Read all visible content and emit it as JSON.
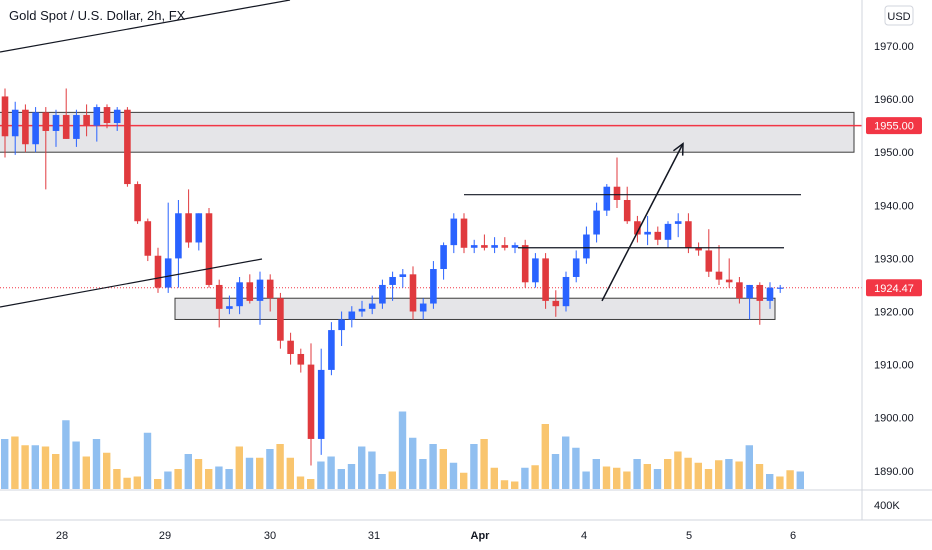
{
  "header": {
    "title": "Gold Spot / U.S. Dollar, 2h, FX"
  },
  "currency_button": "USD",
  "price_tags": {
    "resistance": "1955.00",
    "last": "1924.47"
  },
  "volume_axis_label": "400K",
  "colors": {
    "up": "#2962FF",
    "down": "#E03A3E",
    "vol_up": "#90BFF0",
    "vol_down": "#F9C56E",
    "resistance_line": "#F23645",
    "zone_fill": "#E5E5E8",
    "zone_stroke": "#3b3b3b",
    "drawing": "#131722",
    "last_price": "#F23645"
  },
  "chart_data": {
    "type": "candlestick",
    "title": "Gold Spot / U.S. Dollar, 2h, FX",
    "y_axis": {
      "ticks": [
        "1970.00",
        "1960.00",
        "1950.00",
        "1940.00",
        "1930.00",
        "1920.00",
        "1910.00",
        "1900.00",
        "1890.00"
      ],
      "ylim": [
        1885,
        1977
      ]
    },
    "x_axis": {
      "labels": [
        "28",
        "29",
        "30",
        "31",
        "Apr",
        "4",
        "5",
        "6"
      ],
      "bold": [
        "Apr"
      ]
    },
    "candles_start_offset": -27,
    "candles": [
      [
        1960.5,
        1962.0,
        1949.0,
        1953.0
      ],
      [
        1953.0,
        1959.5,
        1949.5,
        1958.0
      ],
      [
        1958.0,
        1959.0,
        1950.0,
        1951.5
      ],
      [
        1951.5,
        1958.5,
        1950.0,
        1957.5
      ],
      [
        1957.5,
        1958.5,
        1943.0,
        1954.0
      ],
      [
        1954.0,
        1958.0,
        1951.0,
        1957.0
      ],
      [
        1957.0,
        1962.0,
        1952.5,
        1952.5
      ],
      [
        1952.5,
        1958.0,
        1951.0,
        1957.0
      ],
      [
        1957.0,
        1959.0,
        1953.0,
        1955.0
      ],
      [
        1955.0,
        1959.0,
        1952.0,
        1958.5
      ],
      [
        1958.5,
        1959.0,
        1954.5,
        1955.5
      ],
      [
        1955.5,
        1958.5,
        1954.0,
        1958.0
      ],
      [
        1958.0,
        1958.5,
        1943.5,
        1944.0
      ],
      [
        1944.0,
        1944.5,
        1936.5,
        1937.0
      ],
      [
        1937.0,
        1937.5,
        1929.5,
        1930.5
      ],
      [
        1930.5,
        1932.0,
        1923.5,
        1924.5
      ],
      [
        1924.5,
        1940.5,
        1923.5,
        1930.0
      ],
      [
        1930.0,
        1941.0,
        1924.5,
        1938.5
      ],
      [
        1938.5,
        1943.0,
        1932.0,
        1933.0
      ],
      [
        1933.0,
        1938.5,
        1931.5,
        1938.5
      ],
      [
        1938.5,
        1939.5,
        1924.5,
        1925.0
      ],
      [
        1925.0,
        1926.0,
        1917.0,
        1920.5
      ],
      [
        1920.5,
        1923.0,
        1919.5,
        1921.0
      ],
      [
        1921.0,
        1926.5,
        1919.5,
        1925.5
      ],
      [
        1925.5,
        1927.0,
        1921.5,
        1922.0
      ],
      [
        1922.0,
        1927.5,
        1917.5,
        1926.0
      ],
      [
        1926.0,
        1927.0,
        1920.0,
        1922.5
      ],
      [
        1922.5,
        1923.5,
        1913.0,
        1914.5
      ],
      [
        1914.5,
        1916.0,
        1910.0,
        1912.0
      ],
      [
        1912.0,
        1913.0,
        1908.5,
        1910.0
      ],
      [
        1910.0,
        1914.0,
        1891.0,
        1896.0
      ],
      [
        1896.0,
        1913.0,
        1893.0,
        1909.0
      ],
      [
        1909.0,
        1918.0,
        1908.0,
        1916.5
      ],
      [
        1916.5,
        1920.0,
        1913.5,
        1918.5
      ],
      [
        1918.5,
        1921.0,
        1917.0,
        1920.0
      ],
      [
        1920.0,
        1922.0,
        1919.0,
        1920.5
      ],
      [
        1920.5,
        1923.0,
        1919.5,
        1921.5
      ],
      [
        1921.5,
        1926.0,
        1920.5,
        1925.0
      ],
      [
        1925.0,
        1927.5,
        1922.0,
        1926.5
      ],
      [
        1926.5,
        1928.0,
        1924.5,
        1927.0
      ],
      [
        1927.0,
        1928.5,
        1918.5,
        1920.0
      ],
      [
        1920.0,
        1922.5,
        1918.5,
        1921.5
      ],
      [
        1921.5,
        1929.5,
        1920.5,
        1928.0
      ],
      [
        1928.0,
        1933.0,
        1926.0,
        1932.5
      ],
      [
        1932.5,
        1938.5,
        1931.0,
        1937.5
      ],
      [
        1937.5,
        1938.5,
        1931.0,
        1932.0
      ],
      [
        1932.0,
        1933.5,
        1931.0,
        1932.5
      ],
      [
        1932.5,
        1934.5,
        1931.5,
        1932.0
      ],
      [
        1932.0,
        1934.0,
        1931.0,
        1932.5
      ],
      [
        1932.5,
        1934.0,
        1931.5,
        1932.0
      ],
      [
        1932.0,
        1933.0,
        1931.0,
        1932.5
      ],
      [
        1932.5,
        1933.5,
        1924.5,
        1925.5
      ],
      [
        1925.5,
        1931.0,
        1924.5,
        1930.0
      ],
      [
        1930.0,
        1931.0,
        1920.5,
        1922.0
      ],
      [
        1922.0,
        1924.0,
        1919.0,
        1921.0
      ],
      [
        1921.0,
        1927.5,
        1920.0,
        1926.5
      ],
      [
        1926.5,
        1931.5,
        1925.5,
        1930.0
      ],
      [
        1930.0,
        1936.0,
        1929.0,
        1934.5
      ],
      [
        1934.5,
        1940.5,
        1933.0,
        1939.0
      ],
      [
        1939.0,
        1944.0,
        1938.0,
        1943.5
      ],
      [
        1943.5,
        1949.0,
        1939.5,
        1941.0
      ],
      [
        1941.0,
        1943.5,
        1936.5,
        1937.0
      ],
      [
        1937.0,
        1938.0,
        1933.0,
        1934.5
      ],
      [
        1934.5,
        1938.0,
        1932.5,
        1935.0
      ],
      [
        1935.0,
        1936.0,
        1932.5,
        1933.5
      ],
      [
        1933.5,
        1937.0,
        1932.0,
        1936.5
      ],
      [
        1936.5,
        1938.5,
        1934.0,
        1937.0
      ],
      [
        1937.0,
        1938.5,
        1931.0,
        1932.0
      ],
      [
        1932.0,
        1933.0,
        1930.5,
        1931.5
      ],
      [
        1931.5,
        1935.5,
        1926.5,
        1927.5
      ],
      [
        1927.5,
        1932.5,
        1925.0,
        1926.0
      ],
      [
        1926.0,
        1930.0,
        1924.5,
        1925.5
      ],
      [
        1925.5,
        1926.5,
        1921.5,
        1922.5
      ],
      [
        1922.5,
        1925.0,
        1918.5,
        1925.0
      ],
      [
        1925.0,
        1925.5,
        1917.5,
        1922.0
      ],
      [
        1922.0,
        1925.5,
        1920.5,
        1924.5
      ],
      [
        1924.5,
        1925.0,
        1923.5,
        1924.5
      ]
    ],
    "volume": {
      "values": [
        40,
        42,
        35,
        35,
        34,
        28,
        55,
        38,
        26,
        40,
        29,
        16,
        9,
        10,
        45,
        8,
        14,
        16,
        28,
        24,
        16,
        18,
        16,
        34,
        25,
        25,
        32,
        36,
        25,
        10,
        8,
        22,
        26,
        16,
        20,
        34,
        30,
        12,
        14,
        62,
        41,
        24,
        36,
        32,
        21,
        13,
        36,
        40,
        17,
        7,
        6,
        17,
        19,
        52,
        28,
        42,
        33,
        14,
        24,
        18,
        17,
        14,
        24,
        20,
        16,
        24,
        30,
        25,
        21,
        16,
        23,
        24,
        22,
        35,
        20,
        12,
        10,
        15,
        14
      ],
      "up": [
        1,
        0,
        0,
        1,
        0,
        0,
        1,
        1,
        0,
        1,
        0,
        0,
        0,
        0,
        1,
        0,
        1,
        0,
        1,
        0,
        0,
        1,
        1,
        0,
        1,
        0,
        1,
        0,
        0,
        0,
        0,
        1,
        1,
        1,
        1,
        1,
        1,
        1,
        0,
        1,
        1,
        1,
        1,
        0,
        1,
        0,
        1,
        0,
        0,
        0,
        0,
        1,
        0,
        0,
        1,
        1,
        1,
        1,
        1,
        0,
        0,
        0,
        1,
        0,
        1,
        0,
        0,
        0,
        0,
        0,
        0,
        1,
        0,
        1,
        0,
        1,
        0,
        0,
        1
      ],
      "vol_max": 100000,
      "count_shown": 79
    },
    "annotations": {
      "resistance_zone": [
        1950,
        1957.5
      ],
      "support_zone": [
        1918.5,
        1922.5
      ],
      "resistance_line": 1955.0,
      "last_price": 1924.47,
      "horizontal_levels": [
        1942.0,
        1932.0
      ],
      "arrow_from": 1922.0,
      "arrow_to": 1953.5
    }
  }
}
